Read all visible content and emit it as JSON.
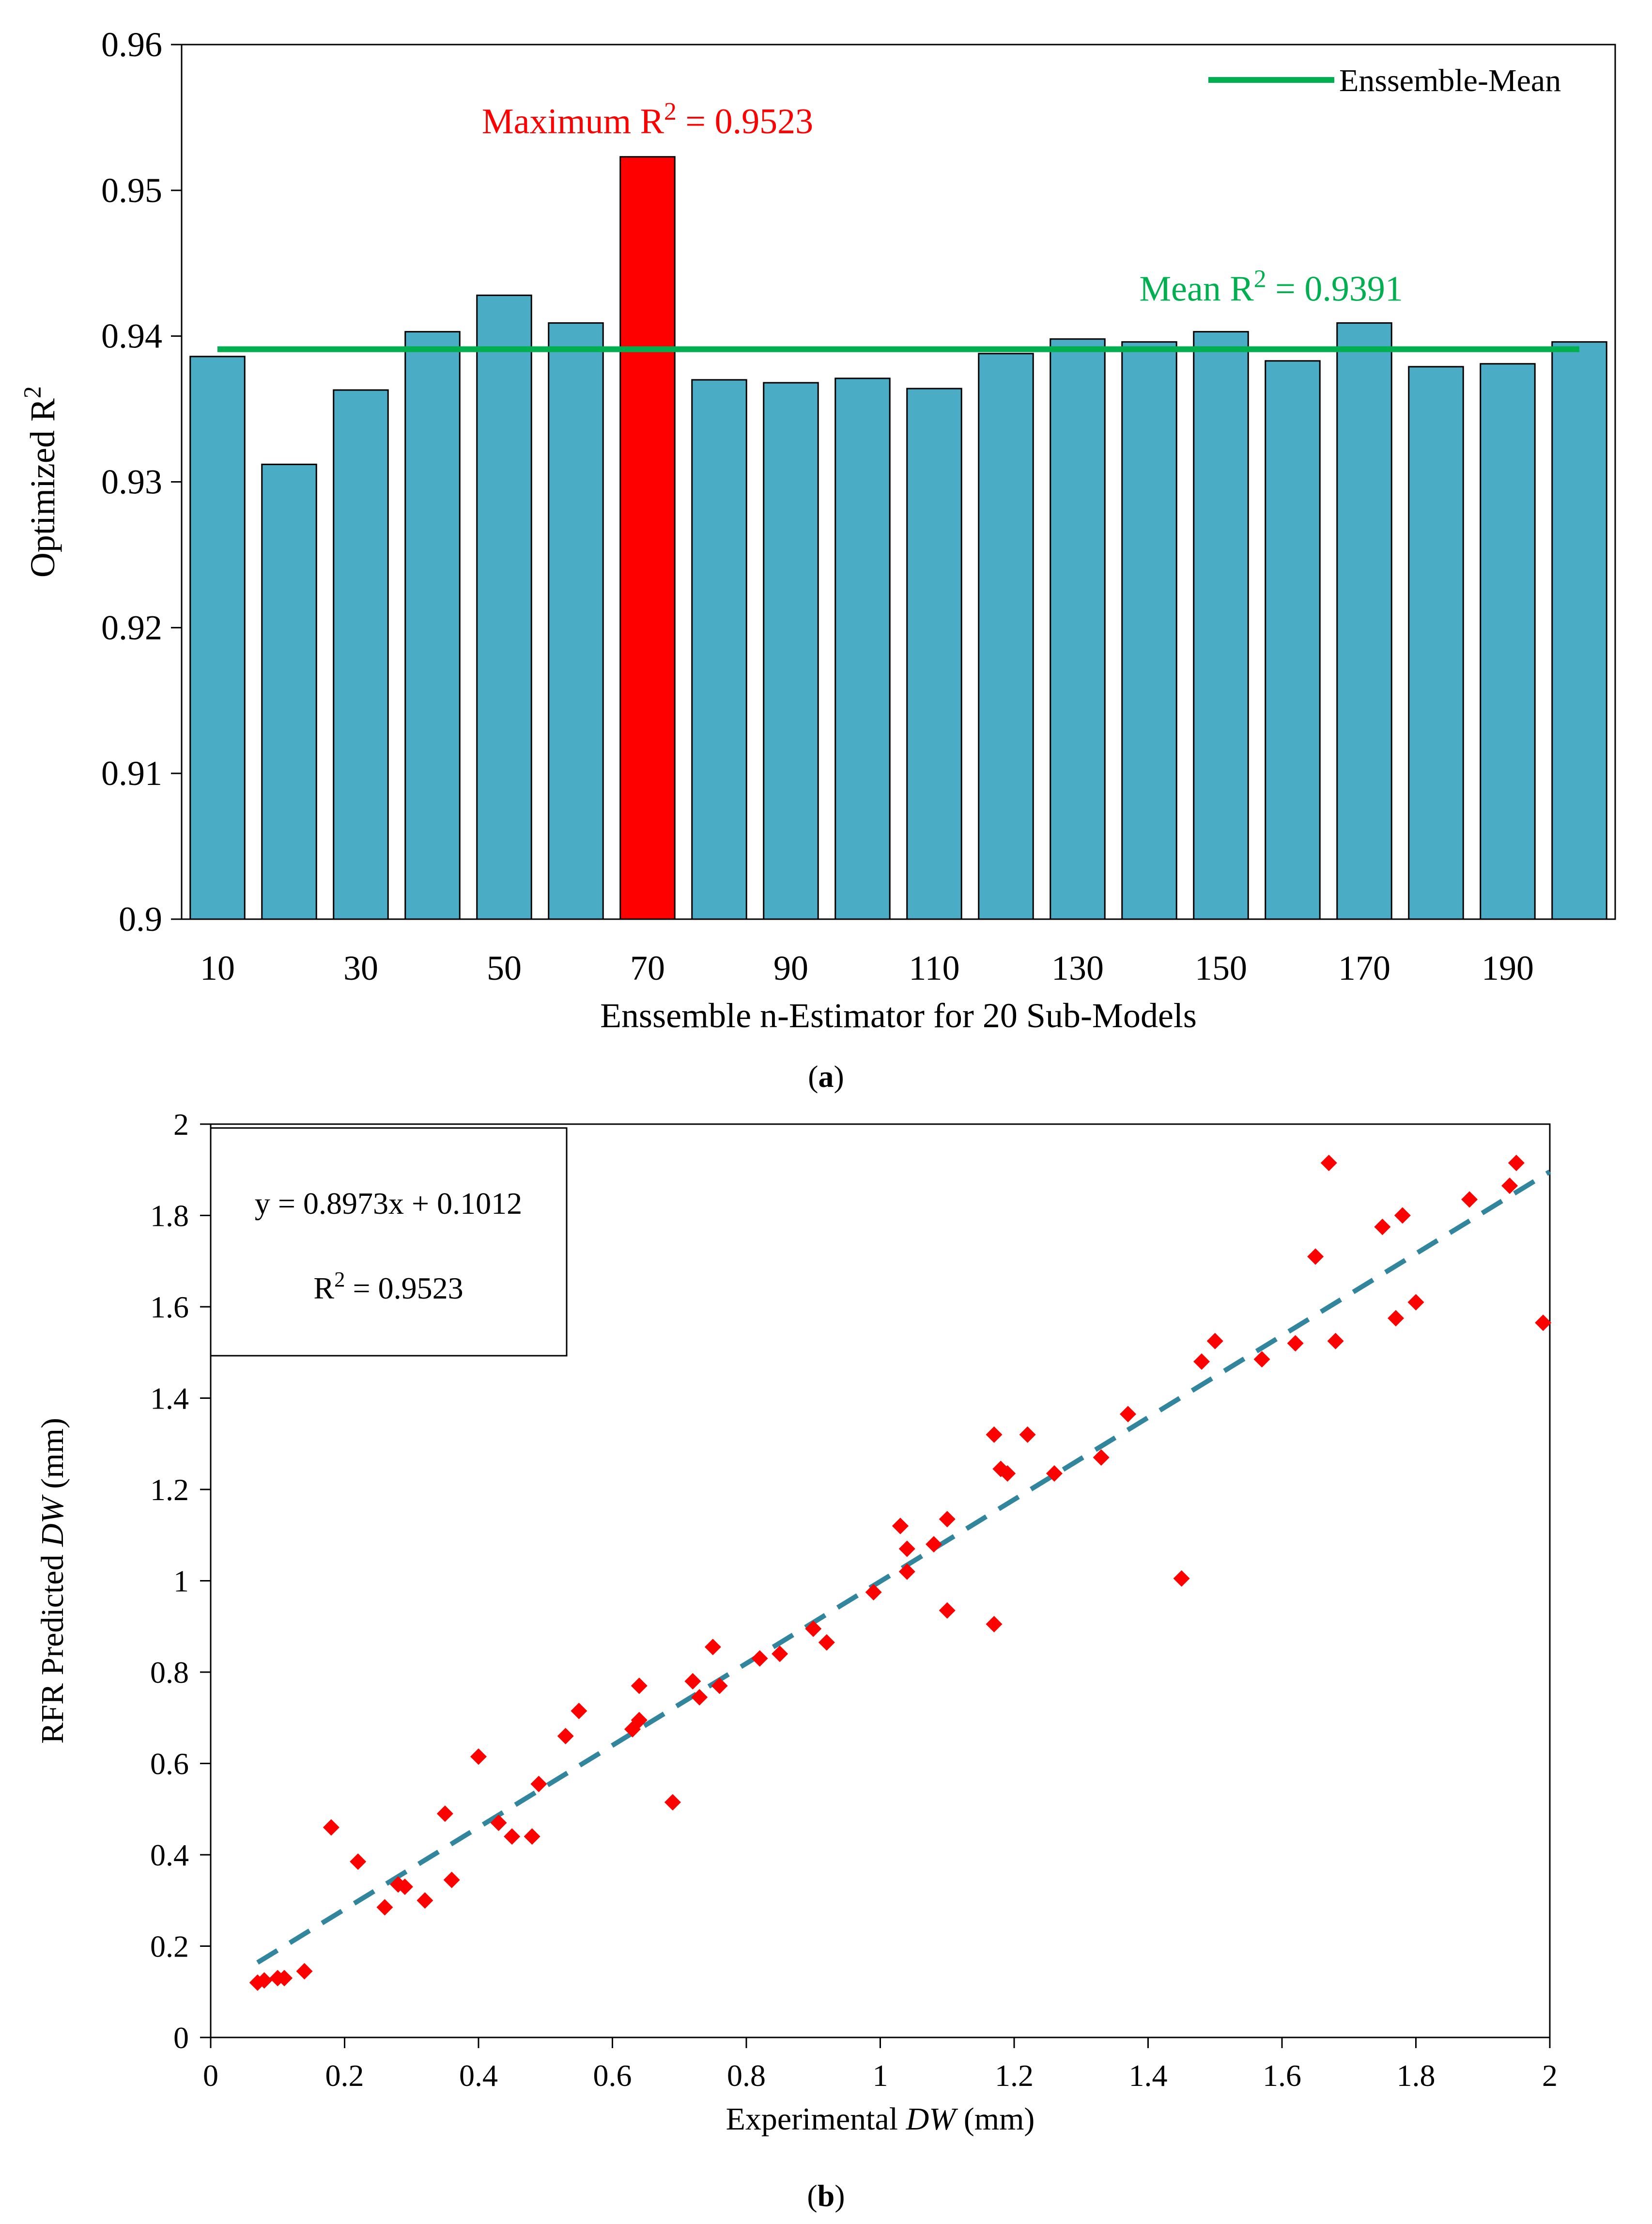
{
  "chart_data": [
    {
      "type": "bar",
      "panel": "a",
      "title": "",
      "xlabel": "Enssemble  n-Estimator  for  20 Sub-Models",
      "ylabel": "Optimized  R²",
      "ylim": [
        0.9,
        0.96
      ],
      "yticks": [
        "0.96",
        "0.95",
        "0.94",
        "0.93",
        "0.92",
        "0.91",
        "0.9"
      ],
      "categories": [
        "10",
        "20",
        "30",
        "40",
        "50",
        "60",
        "70",
        "80",
        "90",
        "100",
        "110",
        "120",
        "130",
        "140",
        "150",
        "160",
        "170",
        "180",
        "190",
        "200"
      ],
      "xtick_labels": [
        "10",
        "30",
        "50",
        "70",
        "90",
        "110",
        "130",
        "150",
        "170",
        "190"
      ],
      "values": [
        0.9386,
        0.9312,
        0.9363,
        0.9403,
        0.9428,
        0.9409,
        0.9523,
        0.937,
        0.9368,
        0.9371,
        0.9364,
        0.9388,
        0.9398,
        0.9396,
        0.9403,
        0.9383,
        0.9409,
        0.9379,
        0.9381,
        0.9396
      ],
      "highlight_index": 6,
      "bar_color": "#4BACC6",
      "highlight_color": "#FF0000",
      "mean_value": 0.9391,
      "mean_color": "#00B050",
      "legend": {
        "label": "Enssemble-Mean",
        "position": "top-right"
      },
      "annotations": {
        "max_label": "Maximum  R² = 0.9523",
        "mean_label": "Mean R² = 0.9391"
      },
      "caption_letter": "a"
    },
    {
      "type": "scatter",
      "panel": "b",
      "title": "",
      "xlabel_prefix": "Experimental  ",
      "xlabel_var": "DW",
      "xlabel_suffix": " (mm)",
      "ylabel_prefix": "RFR Predicted  ",
      "ylabel_var": "DW",
      "ylabel_suffix": " (mm)",
      "xlim": [
        0,
        2
      ],
      "ylim": [
        0,
        2
      ],
      "xtick_labels": [
        "0",
        "0.2",
        "0.4",
        "0.6",
        "0.8",
        "1",
        "1.2",
        "1.4",
        "1.6",
        "1.8",
        "2"
      ],
      "ytick_labels": [
        "0",
        "0.2",
        "0.4",
        "0.6",
        "0.8",
        "1",
        "1.2",
        "1.4",
        "1.6",
        "1.8",
        "2"
      ],
      "point_color": "#FF0000",
      "trend_color": "#31859C",
      "fit": {
        "slope": 0.8973,
        "intercept": 0.1012,
        "x_range": [
          0.07,
          2.0
        ]
      },
      "equation": "y = 0.8973x + 0.1012",
      "r2_label": "R² = 0.9523",
      "points": [
        [
          0.07,
          0.12
        ],
        [
          0.08,
          0.125
        ],
        [
          0.1,
          0.13
        ],
        [
          0.11,
          0.13
        ],
        [
          0.14,
          0.145
        ],
        [
          0.18,
          0.46
        ],
        [
          0.22,
          0.385
        ],
        [
          0.26,
          0.285
        ],
        [
          0.28,
          0.335
        ],
        [
          0.29,
          0.33
        ],
        [
          0.32,
          0.3
        ],
        [
          0.35,
          0.49
        ],
        [
          0.36,
          0.345
        ],
        [
          0.4,
          0.615
        ],
        [
          0.43,
          0.47
        ],
        [
          0.45,
          0.44
        ],
        [
          0.48,
          0.44
        ],
        [
          0.49,
          0.555
        ],
        [
          0.53,
          0.66
        ],
        [
          0.55,
          0.715
        ],
        [
          0.63,
          0.675
        ],
        [
          0.64,
          0.695
        ],
        [
          0.64,
          0.77
        ],
        [
          0.69,
          0.515
        ],
        [
          0.72,
          0.78
        ],
        [
          0.73,
          0.745
        ],
        [
          0.75,
          0.855
        ],
        [
          0.76,
          0.77
        ],
        [
          0.82,
          0.83
        ],
        [
          0.85,
          0.84
        ],
        [
          0.9,
          0.895
        ],
        [
          0.92,
          0.865
        ],
        [
          0.99,
          0.975
        ],
        [
          1.03,
          1.12
        ],
        [
          1.03,
          1.12
        ],
        [
          1.04,
          1.02
        ],
        [
          1.04,
          1.07
        ],
        [
          1.08,
          1.08
        ],
        [
          1.1,
          1.135
        ],
        [
          1.1,
          0.935
        ],
        [
          1.17,
          1.32
        ],
        [
          1.17,
          0.905
        ],
        [
          1.18,
          1.245
        ],
        [
          1.19,
          1.235
        ],
        [
          1.22,
          1.32
        ],
        [
          1.26,
          1.235
        ],
        [
          1.33,
          1.27
        ],
        [
          1.37,
          1.365
        ],
        [
          1.45,
          1.005
        ],
        [
          1.48,
          1.48
        ],
        [
          1.5,
          1.525
        ],
        [
          1.57,
          1.485
        ],
        [
          1.62,
          1.52
        ],
        [
          1.65,
          1.71
        ],
        [
          1.67,
          1.915
        ],
        [
          1.68,
          1.525
        ],
        [
          1.75,
          1.775
        ],
        [
          1.77,
          1.575
        ],
        [
          1.78,
          1.8
        ],
        [
          1.8,
          1.61
        ],
        [
          1.88,
          1.835
        ],
        [
          1.94,
          1.865
        ],
        [
          1.95,
          1.915
        ],
        [
          1.99,
          1.565
        ]
      ],
      "caption_letter": "b"
    }
  ]
}
